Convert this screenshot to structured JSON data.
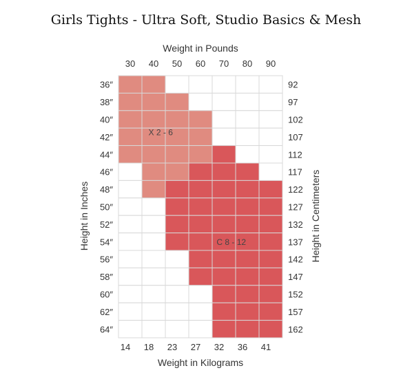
{
  "chart_data": {
    "type": "heatmap",
    "title": "Girls Tights - Ultra Soft, Studio Basics & Mesh",
    "top_axis_label": "Weight in Pounds",
    "bottom_axis_label": "Weight in Kilograms",
    "left_axis_label": "Height in Inches",
    "right_axis_label": "Height in Centimeters",
    "weight_lbs_ticks": [
      "30",
      "40",
      "50",
      "60",
      "70",
      "80",
      "90"
    ],
    "weight_kg_ticks": [
      "14",
      "18",
      "23",
      "27",
      "32",
      "36",
      "41"
    ],
    "height_in_ticks": [
      "36″",
      "38″",
      "40″",
      "42″",
      "44″",
      "46″",
      "48″",
      "50″",
      "52″",
      "54″",
      "56″",
      "58″",
      "60″",
      "62″",
      "64″"
    ],
    "height_cm_ticks": [
      "92",
      "97",
      "102",
      "107",
      "112",
      "117",
      "122",
      "127",
      "132",
      "137",
      "142",
      "147",
      "152",
      "157",
      "162"
    ],
    "sizes": [
      {
        "code": "X",
        "label": "X 2 - 6",
        "color": "#e08b80"
      },
      {
        "code": "C",
        "label": "C 8 - 12",
        "color": "#d9575a"
      }
    ],
    "grid": [
      [
        "X",
        "X",
        "-",
        "-",
        "-",
        "-",
        "-"
      ],
      [
        "X",
        "X",
        "X",
        "-",
        "-",
        "-",
        "-"
      ],
      [
        "X",
        "X",
        "X",
        "X",
        "-",
        "-",
        "-"
      ],
      [
        "X",
        "X",
        "X",
        "X",
        "-",
        "-",
        "-"
      ],
      [
        "X",
        "X",
        "X",
        "X",
        "C",
        "-",
        "-"
      ],
      [
        "-",
        "X",
        "X",
        "C",
        "C",
        "C",
        "-"
      ],
      [
        "-",
        "X",
        "C",
        "C",
        "C",
        "C",
        "C"
      ],
      [
        "-",
        "-",
        "C",
        "C",
        "C",
        "C",
        "C"
      ],
      [
        "-",
        "-",
        "C",
        "C",
        "C",
        "C",
        "C"
      ],
      [
        "-",
        "-",
        "C",
        "C",
        "C",
        "C",
        "C"
      ],
      [
        "-",
        "-",
        "-",
        "C",
        "C",
        "C",
        "C"
      ],
      [
        "-",
        "-",
        "-",
        "C",
        "C",
        "C",
        "C"
      ],
      [
        "-",
        "-",
        "-",
        "-",
        "C",
        "C",
        "C"
      ],
      [
        "-",
        "-",
        "-",
        "-",
        "C",
        "C",
        "C"
      ],
      [
        "-",
        "-",
        "-",
        "-",
        "C",
        "C",
        "C"
      ]
    ],
    "empty_color": "#ffffff",
    "grid_line_color": "#d8d8d8"
  }
}
